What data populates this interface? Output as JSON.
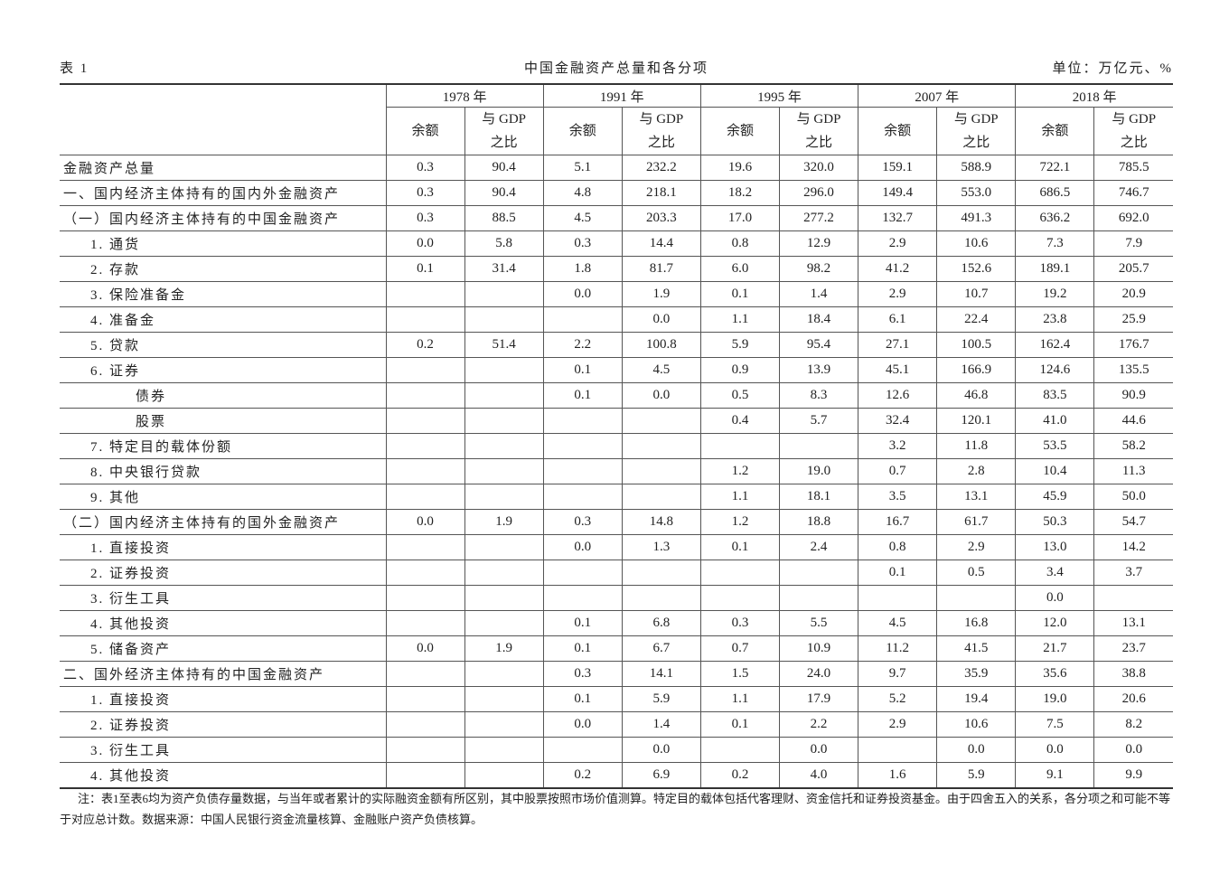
{
  "header": {
    "label": "表 1",
    "title": "中国金融资产总量和各分项",
    "unit": "单位：万亿元、%"
  },
  "table": {
    "years": [
      "1978 年",
      "1991 年",
      "1995 年",
      "2007 年",
      "2018 年"
    ],
    "subheaders": [
      "余额",
      "与 GDP\n之比"
    ],
    "rows": [
      {
        "label": "金融资产总量",
        "values": [
          "0.3",
          "90.4",
          "5.1",
          "232.2",
          "19.6",
          "320.0",
          "159.1",
          "588.9",
          "722.1",
          "785.5"
        ]
      },
      {
        "label": "一、国内经济主体持有的国内外金融资产",
        "values": [
          "0.3",
          "90.4",
          "4.8",
          "218.1",
          "18.2",
          "296.0",
          "149.4",
          "553.0",
          "686.5",
          "746.7"
        ]
      },
      {
        "label": "（一）国内经济主体持有的中国金融资产",
        "values": [
          "0.3",
          "88.5",
          "4.5",
          "203.3",
          "17.0",
          "277.2",
          "132.7",
          "491.3",
          "636.2",
          "692.0"
        ]
      },
      {
        "label": "1. 通货",
        "values": [
          "0.0",
          "5.8",
          "0.3",
          "14.4",
          "0.8",
          "12.9",
          "2.9",
          "10.6",
          "7.3",
          "7.9"
        ]
      },
      {
        "label": "2. 存款",
        "values": [
          "0.1",
          "31.4",
          "1.8",
          "81.7",
          "6.0",
          "98.2",
          "41.2",
          "152.6",
          "189.1",
          "205.7"
        ]
      },
      {
        "label": "3. 保险准备金",
        "values": [
          null,
          null,
          "0.0",
          "1.9",
          "0.1",
          "1.4",
          "2.9",
          "10.7",
          "19.2",
          "20.9"
        ]
      },
      {
        "label": "4. 准备金",
        "values": [
          null,
          null,
          null,
          "0.0",
          "1.1",
          "18.4",
          "6.1",
          "22.4",
          "23.8",
          "25.9"
        ]
      },
      {
        "label": "5. 贷款",
        "values": [
          "0.2",
          "51.4",
          "2.2",
          "100.8",
          "5.9",
          "95.4",
          "27.1",
          "100.5",
          "162.4",
          "176.7"
        ]
      },
      {
        "label": "6. 证券",
        "values": [
          null,
          null,
          "0.1",
          "4.5",
          "0.9",
          "13.9",
          "45.1",
          "166.9",
          "124.6",
          "135.5"
        ]
      },
      {
        "label": "债券",
        "values": [
          null,
          null,
          "0.1",
          "0.0",
          "0.5",
          "8.3",
          "12.6",
          "46.8",
          "83.5",
          "90.9"
        ]
      },
      {
        "label": "股票",
        "values": [
          null,
          null,
          null,
          null,
          "0.4",
          "5.7",
          "32.4",
          "120.1",
          "41.0",
          "44.6"
        ]
      },
      {
        "label": "7. 特定目的载体份额",
        "values": [
          null,
          null,
          null,
          null,
          null,
          null,
          "3.2",
          "11.8",
          "53.5",
          "58.2"
        ]
      },
      {
        "label": "8. 中央银行贷款",
        "values": [
          null,
          null,
          null,
          null,
          "1.2",
          "19.0",
          "0.7",
          "2.8",
          "10.4",
          "11.3"
        ]
      },
      {
        "label": "9. 其他",
        "values": [
          null,
          null,
          null,
          null,
          "1.1",
          "18.1",
          "3.5",
          "13.1",
          "45.9",
          "50.0"
        ]
      },
      {
        "label": "（二）国内经济主体持有的国外金融资产",
        "values": [
          "0.0",
          "1.9",
          "0.3",
          "14.8",
          "1.2",
          "18.8",
          "16.7",
          "61.7",
          "50.3",
          "54.7"
        ]
      },
      {
        "label": "1. 直接投资",
        "values": [
          null,
          null,
          "0.0",
          "1.3",
          "0.1",
          "2.4",
          "0.8",
          "2.9",
          "13.0",
          "14.2"
        ]
      },
      {
        "label": "2. 证券投资",
        "values": [
          null,
          null,
          null,
          null,
          null,
          null,
          "0.1",
          "0.5",
          "3.4",
          "3.7"
        ]
      },
      {
        "label": "3. 衍生工具",
        "values": [
          null,
          null,
          null,
          null,
          null,
          null,
          null,
          null,
          "0.0",
          null
        ]
      },
      {
        "label": "4. 其他投资",
        "values": [
          null,
          null,
          "0.1",
          "6.8",
          "0.3",
          "5.5",
          "4.5",
          "16.8",
          "12.0",
          "13.1"
        ]
      },
      {
        "label": "5. 储备资产",
        "values": [
          "0.0",
          "1.9",
          "0.1",
          "6.7",
          "0.7",
          "10.9",
          "11.2",
          "41.5",
          "21.7",
          "23.7"
        ]
      },
      {
        "label": "二、国外经济主体持有的中国金融资产",
        "values": [
          null,
          null,
          "0.3",
          "14.1",
          "1.5",
          "24.0",
          "9.7",
          "35.9",
          "35.6",
          "38.8"
        ]
      },
      {
        "label": "1. 直接投资",
        "values": [
          null,
          null,
          "0.1",
          "5.9",
          "1.1",
          "17.9",
          "5.2",
          "19.4",
          "19.0",
          "20.6"
        ]
      },
      {
        "label": "2. 证券投资",
        "values": [
          null,
          null,
          "0.0",
          "1.4",
          "0.1",
          "2.2",
          "2.9",
          "10.6",
          "7.5",
          "8.2"
        ]
      },
      {
        "label": "3. 衍生工具",
        "values": [
          null,
          null,
          null,
          "0.0",
          null,
          "0.0",
          null,
          "0.0",
          "0.0",
          "0.0"
        ]
      },
      {
        "label": "4. 其他投资",
        "values": [
          null,
          null,
          "0.2",
          "6.9",
          "0.2",
          "4.0",
          "1.6",
          "5.9",
          "9.1",
          "9.9"
        ]
      }
    ]
  },
  "note": "注：表1至表6均为资产负债存量数据，与当年或者累计的实际融资金额有所区别，其中股票按照市场价值测算。特定目的载体包括代客理财、资金信托和证券投资基金。由于四舍五入的关系，各分项之和可能不等于对应总计数。数据来源：中国人民银行资金流量核算、金融账户资产负债核算。"
}
